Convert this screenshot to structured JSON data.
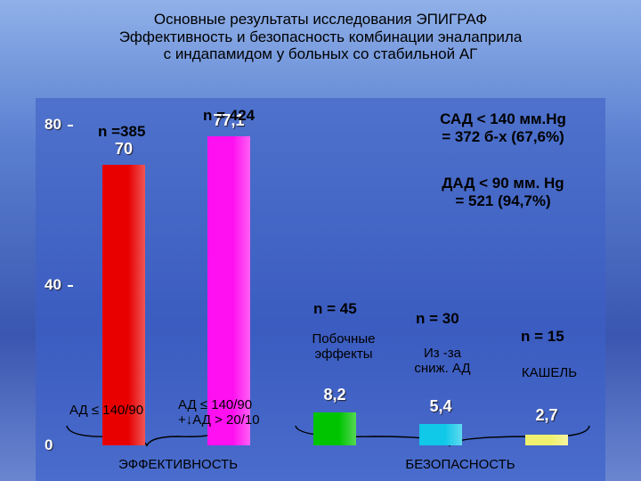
{
  "chart_data": {
    "type": "bar",
    "title": "Основные  результаты  исследования   ЭПИГРАФ\nЭффективность и безопасность комбинации эналаприла\nс индапамидом у   больных  со  стабильной  АГ",
    "categories": [
      "АД ≤ 140/90",
      "АД ≤ 140/90\n+↓АД > 20/10",
      "Побочные\nэффекты",
      "Из -за\nсниж. АД",
      "КАШЕЛЬ"
    ],
    "values": [
      70,
      77.1,
      8.2,
      5.4,
      2.7
    ],
    "value_labels": [
      "70",
      "77,1",
      "8,2",
      "5,4",
      "2,7"
    ],
    "sample_sizes": [
      "n =385",
      "n = 424",
      "n = 45",
      "n = 30",
      "n = 15"
    ],
    "colors": [
      "#e80000",
      "#ff10f0",
      "#00c400",
      "#10c8e8",
      "#f0f070"
    ],
    "groups": [
      "ЭФФЕКТИВНОСТЬ",
      "БЕЗОПАСНОСТЬ"
    ],
    "note": [
      "САД  < 140  мм.Hg\n= 372 б-х (67,6%)",
      "ДАД < 90 мм. Hg\n= 521 (94,7%)"
    ],
    "ylim": [
      0,
      80
    ],
    "yticks": [
      0,
      40,
      80
    ]
  }
}
